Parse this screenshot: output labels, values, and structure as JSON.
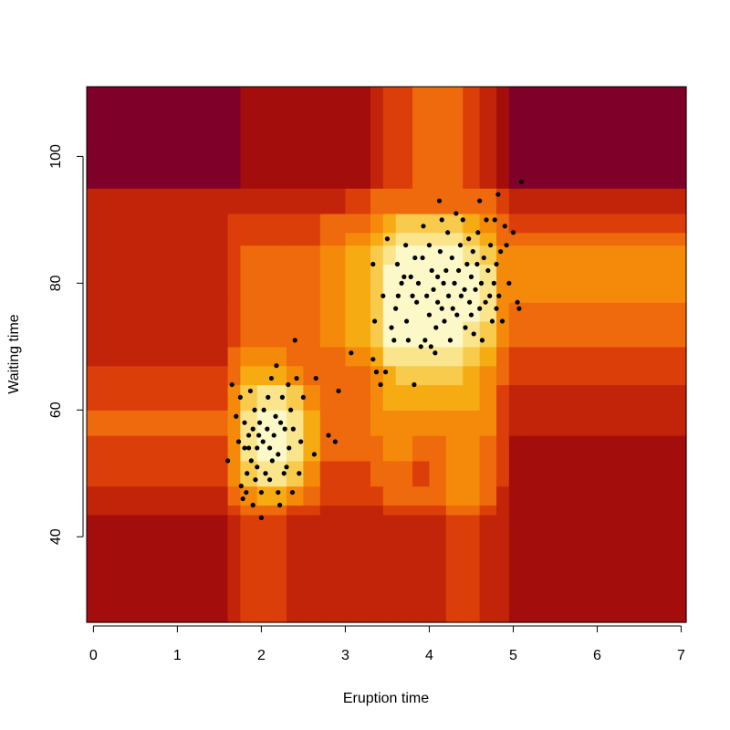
{
  "chart_data": {
    "type": "heatmap",
    "title": "",
    "xlabel": "Eruption time",
    "ylabel": "Waiting time",
    "xlim": [
      -0.08,
      7.06
    ],
    "ylim": [
      26.5,
      111
    ],
    "xticks": [
      0,
      1,
      2,
      3,
      4,
      5,
      6,
      7
    ],
    "yticks": [
      40,
      60,
      80,
      100
    ],
    "colors": {
      "background": "#ffffff",
      "axis": "#000000",
      "point": "#000000",
      "scale": [
        "#7f0029",
        "#a30e0d",
        "#c2240a",
        "#dc3e0a",
        "#ee6a0c",
        "#f58a0a",
        "#f7ab12",
        "#f9cb4c",
        "#fae58c",
        "#fdf8c8"
      ]
    },
    "density_grid": {
      "x_breaks": [
        -0.08,
        1.6,
        1.75,
        1.95,
        2.1,
        2.3,
        2.5,
        2.7,
        3.0,
        3.3,
        3.45,
        3.6,
        3.8,
        4.0,
        4.2,
        4.4,
        4.6,
        4.8,
        4.95,
        5.1,
        7.06
      ],
      "y_breaks": [
        26.5,
        43.5,
        45,
        48,
        52,
        56,
        60,
        64,
        67,
        70,
        74,
        77,
        80,
        83,
        86,
        88,
        91,
        95,
        111
      ],
      "levels": [
        [
          1,
          2,
          3,
          3,
          3,
          2,
          2,
          2,
          2,
          2,
          2,
          2,
          2,
          2,
          3,
          3,
          2,
          2,
          1,
          1
        ],
        [
          2,
          3,
          4,
          4,
          4,
          3,
          3,
          2,
          2,
          2,
          3,
          3,
          3,
          3,
          4,
          4,
          3,
          2,
          1,
          1
        ],
        [
          2,
          4,
          5,
          6,
          6,
          5,
          4,
          3,
          3,
          3,
          4,
          4,
          4,
          4,
          5,
          5,
          4,
          2,
          1,
          1
        ],
        [
          3,
          5,
          7,
          8,
          8,
          7,
          5,
          3,
          3,
          4,
          4,
          4,
          3,
          4,
          5,
          5,
          4,
          3,
          1,
          1
        ],
        [
          3,
          5,
          8,
          9,
          9,
          8,
          6,
          4,
          4,
          4,
          5,
          5,
          4,
          4,
          5,
          5,
          4,
          3,
          1,
          1
        ],
        [
          4,
          5,
          8,
          9,
          9,
          8,
          6,
          4,
          4,
          5,
          5,
          5,
          5,
          5,
          5,
          5,
          5,
          3,
          2,
          2
        ],
        [
          3,
          5,
          7,
          8,
          8,
          7,
          5,
          4,
          4,
          5,
          6,
          6,
          6,
          6,
          6,
          6,
          5,
          3,
          2,
          2
        ],
        [
          3,
          4,
          6,
          6,
          6,
          5,
          4,
          4,
          4,
          5,
          6,
          7,
          7,
          7,
          7,
          6,
          5,
          4,
          3,
          3
        ],
        [
          2,
          4,
          5,
          5,
          5,
          4,
          4,
          4,
          5,
          6,
          8,
          8,
          8,
          8,
          8,
          7,
          6,
          4,
          3,
          3
        ],
        [
          2,
          3,
          4,
          4,
          4,
          4,
          4,
          5,
          6,
          7,
          9,
          9,
          9,
          9,
          9,
          8,
          7,
          5,
          4,
          4
        ],
        [
          2,
          3,
          4,
          4,
          4,
          4,
          4,
          5,
          6,
          7,
          9,
          9,
          9,
          9,
          9,
          9,
          8,
          5,
          4,
          4
        ],
        [
          2,
          3,
          4,
          4,
          4,
          4,
          4,
          5,
          6,
          7,
          9,
          9,
          9,
          9,
          9,
          9,
          8,
          5,
          5,
          5
        ],
        [
          2,
          3,
          4,
          4,
          4,
          4,
          4,
          5,
          6,
          7,
          9,
          9,
          9,
          9,
          9,
          9,
          8,
          5,
          5,
          5
        ],
        [
          2,
          3,
          4,
          4,
          4,
          4,
          4,
          5,
          6,
          7,
          8,
          9,
          9,
          9,
          9,
          8,
          7,
          5,
          5,
          5
        ],
        [
          2,
          3,
          3,
          3,
          3,
          3,
          3,
          4,
          5,
          6,
          7,
          8,
          8,
          8,
          8,
          7,
          6,
          4,
          4,
          4
        ],
        [
          2,
          3,
          3,
          3,
          3,
          3,
          3,
          4,
          4,
          5,
          6,
          7,
          7,
          7,
          7,
          6,
          5,
          4,
          3,
          3
        ],
        [
          2,
          2,
          2,
          2,
          2,
          2,
          2,
          2,
          3,
          4,
          4,
          4,
          4,
          4,
          4,
          4,
          4,
          3,
          2,
          2
        ],
        [
          0,
          0,
          1,
          1,
          1,
          1,
          1,
          1,
          1,
          2,
          3,
          3,
          4,
          4,
          4,
          3,
          2,
          1,
          0,
          0
        ]
      ]
    },
    "points": [
      [
        1.6,
        52
      ],
      [
        1.65,
        64
      ],
      [
        1.7,
        59
      ],
      [
        1.73,
        55
      ],
      [
        1.75,
        62
      ],
      [
        1.76,
        48
      ],
      [
        1.78,
        46
      ],
      [
        1.8,
        54
      ],
      [
        1.8,
        58
      ],
      [
        1.82,
        47
      ],
      [
        1.83,
        50
      ],
      [
        1.85,
        54
      ],
      [
        1.85,
        56
      ],
      [
        1.87,
        63
      ],
      [
        1.88,
        52
      ],
      [
        1.9,
        45
      ],
      [
        1.9,
        57
      ],
      [
        1.92,
        60
      ],
      [
        1.93,
        49
      ],
      [
        1.95,
        54
      ],
      [
        1.95,
        51
      ],
      [
        1.97,
        56
      ],
      [
        1.98,
        58
      ],
      [
        2.0,
        47
      ],
      [
        2.0,
        43
      ],
      [
        2.02,
        55
      ],
      [
        2.03,
        60
      ],
      [
        2.05,
        50
      ],
      [
        2.07,
        57
      ],
      [
        2.08,
        62
      ],
      [
        2.1,
        49
      ],
      [
        2.1,
        54
      ],
      [
        2.12,
        65
      ],
      [
        2.13,
        52
      ],
      [
        2.15,
        56
      ],
      [
        2.17,
        59
      ],
      [
        2.18,
        67
      ],
      [
        2.2,
        47
      ],
      [
        2.2,
        53
      ],
      [
        2.22,
        45
      ],
      [
        2.23,
        58
      ],
      [
        2.25,
        62
      ],
      [
        2.27,
        50
      ],
      [
        2.28,
        57
      ],
      [
        2.3,
        51
      ],
      [
        2.32,
        64
      ],
      [
        2.33,
        54
      ],
      [
        2.35,
        60
      ],
      [
        2.37,
        47
      ],
      [
        2.38,
        57
      ],
      [
        2.4,
        71
      ],
      [
        2.42,
        65
      ],
      [
        2.45,
        50
      ],
      [
        2.47,
        55
      ],
      [
        2.5,
        62
      ],
      [
        2.63,
        53
      ],
      [
        2.65,
        65
      ],
      [
        2.8,
        56
      ],
      [
        2.88,
        55
      ],
      [
        2.92,
        63
      ],
      [
        3.07,
        69
      ],
      [
        3.33,
        68
      ],
      [
        3.33,
        83
      ],
      [
        3.35,
        74
      ],
      [
        3.37,
        66
      ],
      [
        3.42,
        64
      ],
      [
        3.45,
        78
      ],
      [
        3.48,
        66
      ],
      [
        3.5,
        87
      ],
      [
        3.55,
        73
      ],
      [
        3.58,
        71
      ],
      [
        3.6,
        76
      ],
      [
        3.62,
        83
      ],
      [
        3.63,
        78
      ],
      [
        3.67,
        80
      ],
      [
        3.7,
        81
      ],
      [
        3.72,
        86
      ],
      [
        3.73,
        74
      ],
      [
        3.75,
        71
      ],
      [
        3.78,
        81
      ],
      [
        3.8,
        78
      ],
      [
        3.82,
        64
      ],
      [
        3.83,
        84
      ],
      [
        3.85,
        77
      ],
      [
        3.87,
        80
      ],
      [
        3.9,
        70
      ],
      [
        3.92,
        84
      ],
      [
        3.93,
        89
      ],
      [
        3.95,
        71
      ],
      [
        3.97,
        78
      ],
      [
        4.0,
        75
      ],
      [
        4.0,
        86
      ],
      [
        4.02,
        70
      ],
      [
        4.03,
        82
      ],
      [
        4.05,
        79
      ],
      [
        4.07,
        69
      ],
      [
        4.08,
        73
      ],
      [
        4.1,
        77
      ],
      [
        4.1,
        81
      ],
      [
        4.12,
        93
      ],
      [
        4.13,
        85
      ],
      [
        4.15,
        76
      ],
      [
        4.15,
        90
      ],
      [
        4.17,
        80
      ],
      [
        4.18,
        74
      ],
      [
        4.2,
        82
      ],
      [
        4.22,
        88
      ],
      [
        4.23,
        78
      ],
      [
        4.25,
        71
      ],
      [
        4.27,
        84
      ],
      [
        4.28,
        76
      ],
      [
        4.3,
        80
      ],
      [
        4.32,
        91
      ],
      [
        4.33,
        75
      ],
      [
        4.35,
        82
      ],
      [
        4.37,
        86
      ],
      [
        4.38,
        78
      ],
      [
        4.4,
        90
      ],
      [
        4.42,
        79
      ],
      [
        4.43,
        73
      ],
      [
        4.45,
        83
      ],
      [
        4.47,
        87
      ],
      [
        4.48,
        77
      ],
      [
        4.5,
        81
      ],
      [
        4.5,
        75
      ],
      [
        4.52,
        85
      ],
      [
        4.53,
        72
      ],
      [
        4.55,
        79
      ],
      [
        4.57,
        83
      ],
      [
        4.58,
        88
      ],
      [
        4.6,
        76
      ],
      [
        4.6,
        93
      ],
      [
        4.62,
        80
      ],
      [
        4.63,
        71
      ],
      [
        4.65,
        84
      ],
      [
        4.67,
        77
      ],
      [
        4.68,
        90
      ],
      [
        4.7,
        82
      ],
      [
        4.72,
        78
      ],
      [
        4.73,
        86
      ],
      [
        4.75,
        74
      ],
      [
        4.77,
        80
      ],
      [
        4.78,
        90
      ],
      [
        4.8,
        76
      ],
      [
        4.8,
        83
      ],
      [
        4.82,
        94
      ],
      [
        4.83,
        78
      ],
      [
        4.85,
        85
      ],
      [
        4.87,
        74
      ],
      [
        4.9,
        89
      ],
      [
        4.92,
        86
      ],
      [
        4.95,
        80
      ],
      [
        5.0,
        88
      ],
      [
        5.05,
        77
      ],
      [
        5.07,
        76
      ],
      [
        5.1,
        96
      ]
    ]
  }
}
